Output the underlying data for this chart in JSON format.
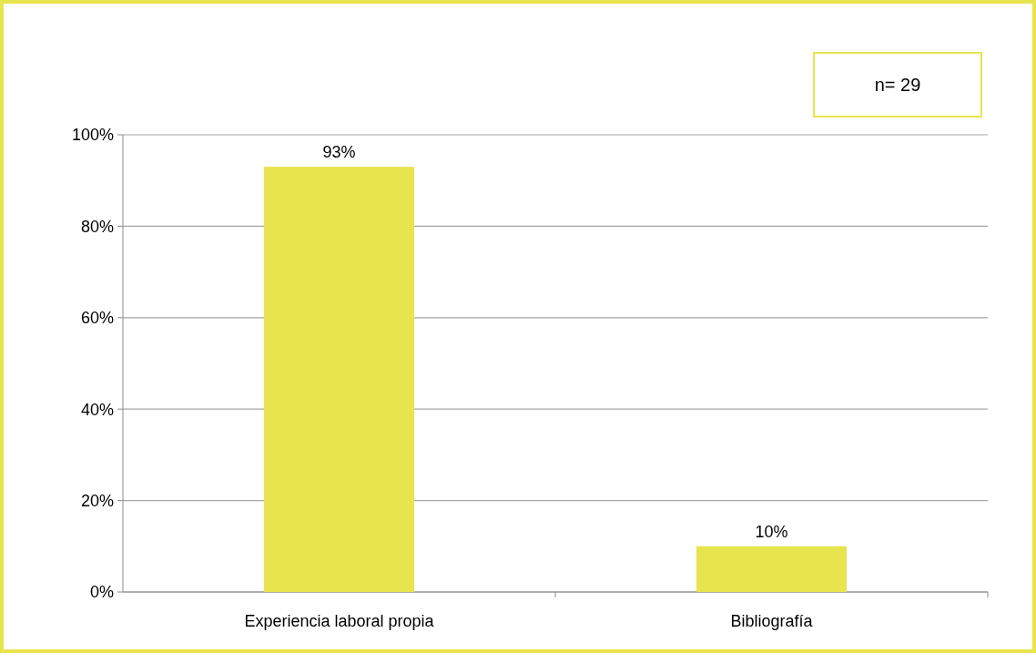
{
  "chart_data": {
    "type": "bar",
    "categories": [
      "Experiencia laboral propia",
      "Bibliografía"
    ],
    "values": [
      93,
      10
    ],
    "color": "#e8e44e",
    "value_labels": [
      "93%",
      "10%"
    ],
    "ylim": [
      0,
      100
    ],
    "yticks": [
      {
        "value": 0,
        "label": "0%"
      },
      {
        "value": 20,
        "label": "20%"
      },
      {
        "value": 40,
        "label": "40%"
      },
      {
        "value": 60,
        "label": "60%"
      },
      {
        "value": 80,
        "label": "80%"
      },
      {
        "value": 100,
        "label": "100%"
      }
    ],
    "grid": "y",
    "annotations": [
      "n= 29"
    ]
  }
}
